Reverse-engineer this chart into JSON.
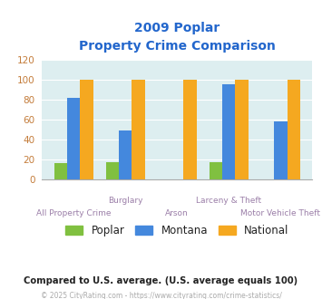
{
  "title_line1": "2009 Poplar",
  "title_line2": "Property Crime Comparison",
  "categories": [
    "All Property Crime",
    "Burglary",
    "Arson",
    "Larceny & Theft",
    "Motor Vehicle Theft"
  ],
  "poplar": [
    16,
    17,
    0,
    17,
    0
  ],
  "montana": [
    82,
    49,
    0,
    95,
    58
  ],
  "national": [
    100,
    100,
    100,
    100,
    100
  ],
  "poplar_color": "#80c040",
  "montana_color": "#4488dd",
  "national_color": "#f5a820",
  "ylim": [
    0,
    120
  ],
  "yticks": [
    0,
    20,
    40,
    60,
    80,
    100,
    120
  ],
  "plot_bg": "#ddeef0",
  "fig_bg": "#ffffff",
  "title_color": "#2266cc",
  "xlabel_color_upper": "#9b7fa8",
  "xlabel_color_lower": "#9b7fa8",
  "ylabel_color": "#c47c3a",
  "legend_labels": [
    "Poplar",
    "Montana",
    "National"
  ],
  "legend_text_color": "#222222",
  "footnote1": "Compared to U.S. average. (U.S. average equals 100)",
  "footnote2": "© 2025 CityRating.com - https://www.cityrating.com/crime-statistics/",
  "footnote1_color": "#222222",
  "footnote2_color": "#aaaaaa",
  "footnote2_link_color": "#4488dd"
}
